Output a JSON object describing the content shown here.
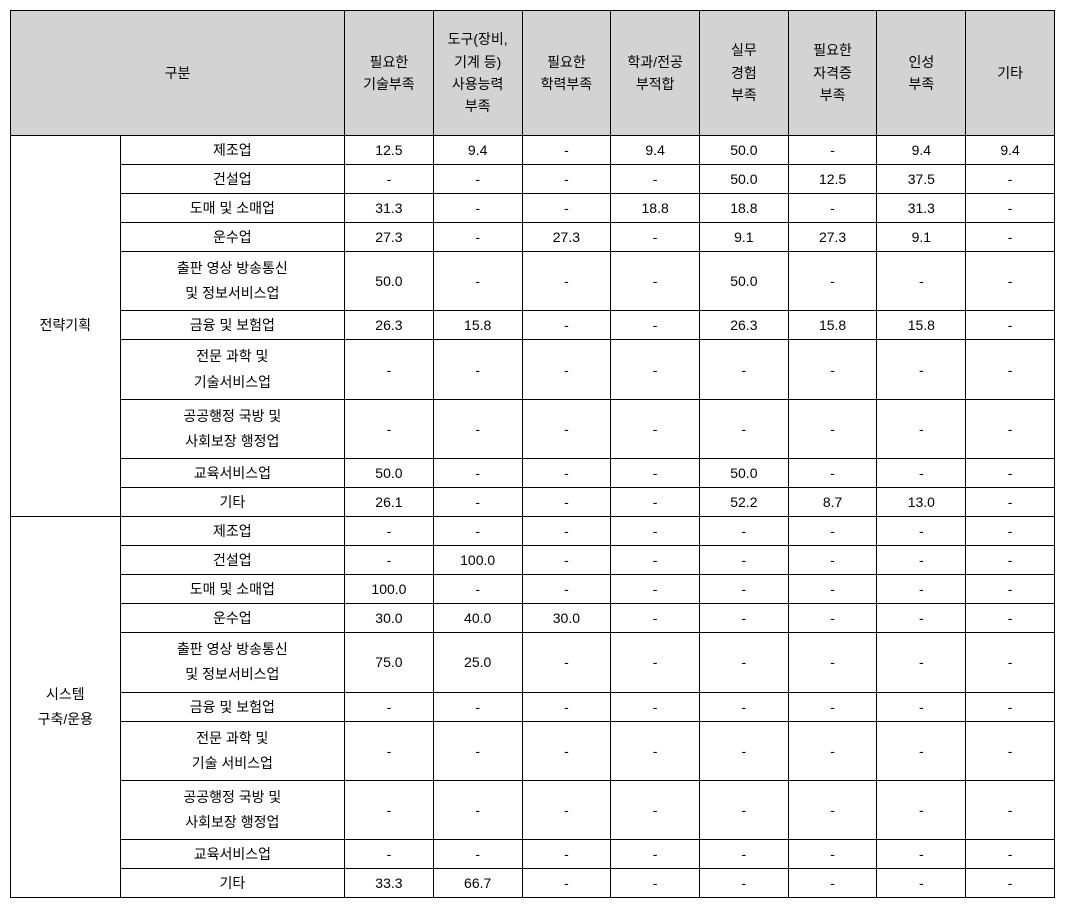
{
  "headers": {
    "division": "구분",
    "col1": "필요한\n기술부족",
    "col2": "도구(장비,\n기계 등)\n사용능력\n부족",
    "col3": "필요한\n학력부족",
    "col4": "학과/전공\n부적합",
    "col5": "실무\n경험\n부족",
    "col6": "필요한\n자격증\n부족",
    "col7": "인성\n부족",
    "col8": "기타"
  },
  "categories": {
    "cat1": "전략기획",
    "cat2": "시스템\n구축/운용"
  },
  "industries": {
    "ind1": "제조업",
    "ind2": "건설업",
    "ind3": "도매 및 소매업",
    "ind4": "운수업",
    "ind5": "출판 영상 방송통신\n및 정보서비스업",
    "ind6": "금융 및 보험업",
    "ind7": "전문 과학 및\n기술서비스업",
    "ind7b": "전문 과학 및\n기술 서비스업",
    "ind8": "공공행정 국방 및\n사회보장 행정업",
    "ind9": "교육서비스업",
    "ind10": "기타"
  },
  "dash": "-",
  "data": {
    "g1": {
      "r1": {
        "c1": "12.5",
        "c2": "9.4",
        "c3": "-",
        "c4": "9.4",
        "c5": "50.0",
        "c6": "-",
        "c7": "9.4",
        "c8": "9.4"
      },
      "r2": {
        "c1": "-",
        "c2": "-",
        "c3": "-",
        "c4": "-",
        "c5": "50.0",
        "c6": "12.5",
        "c7": "37.5",
        "c8": "-"
      },
      "r3": {
        "c1": "31.3",
        "c2": "-",
        "c3": "-",
        "c4": "18.8",
        "c5": "18.8",
        "c6": "-",
        "c7": "31.3",
        "c8": "-"
      },
      "r4": {
        "c1": "27.3",
        "c2": "-",
        "c3": "27.3",
        "c4": "-",
        "c5": "9.1",
        "c6": "27.3",
        "c7": "9.1",
        "c8": "-"
      },
      "r5": {
        "c1": "50.0",
        "c2": "-",
        "c3": "-",
        "c4": "-",
        "c5": "50.0",
        "c6": "-",
        "c7": "-",
        "c8": "-"
      },
      "r6": {
        "c1": "26.3",
        "c2": "15.8",
        "c3": "-",
        "c4": "-",
        "c5": "26.3",
        "c6": "15.8",
        "c7": "15.8",
        "c8": "-"
      },
      "r7": {
        "c1": "-",
        "c2": "-",
        "c3": "-",
        "c4": "-",
        "c5": "-",
        "c6": "-",
        "c7": "-",
        "c8": "-"
      },
      "r8": {
        "c1": "-",
        "c2": "-",
        "c3": "-",
        "c4": "-",
        "c5": "-",
        "c6": "-",
        "c7": "-",
        "c8": "-"
      },
      "r9": {
        "c1": "50.0",
        "c2": "-",
        "c3": "-",
        "c4": "-",
        "c5": "50.0",
        "c6": "-",
        "c7": "-",
        "c8": "-"
      },
      "r10": {
        "c1": "26.1",
        "c2": "-",
        "c3": "-",
        "c4": "-",
        "c5": "52.2",
        "c6": "8.7",
        "c7": "13.0",
        "c8": "-"
      }
    },
    "g2": {
      "r1": {
        "c1": "-",
        "c2": "-",
        "c3": "-",
        "c4": "-",
        "c5": "-",
        "c6": "-",
        "c7": "-",
        "c8": "-"
      },
      "r2": {
        "c1": "-",
        "c2": "100.0",
        "c3": "-",
        "c4": "-",
        "c5": "-",
        "c6": "-",
        "c7": "-",
        "c8": "-"
      },
      "r3": {
        "c1": "100.0",
        "c2": "-",
        "c3": "-",
        "c4": "-",
        "c5": "-",
        "c6": "-",
        "c7": "-",
        "c8": "-"
      },
      "r4": {
        "c1": "30.0",
        "c2": "40.0",
        "c3": "30.0",
        "c4": "-",
        "c5": "-",
        "c6": "-",
        "c7": "-",
        "c8": "-"
      },
      "r5": {
        "c1": "75.0",
        "c2": "25.0",
        "c3": "-",
        "c4": "-",
        "c5": "-",
        "c6": "-",
        "c7": "-",
        "c8": "-"
      },
      "r6": {
        "c1": "-",
        "c2": "-",
        "c3": "-",
        "c4": "-",
        "c5": "-",
        "c6": "-",
        "c7": "-",
        "c8": "-"
      },
      "r7": {
        "c1": "-",
        "c2": "-",
        "c3": "-",
        "c4": "-",
        "c5": "-",
        "c6": "-",
        "c7": "-",
        "c8": "-"
      },
      "r8": {
        "c1": "-",
        "c2": "-",
        "c3": "-",
        "c4": "-",
        "c5": "-",
        "c6": "-",
        "c7": "-",
        "c8": "-"
      },
      "r9": {
        "c1": "-",
        "c2": "-",
        "c3": "-",
        "c4": "-",
        "c5": "-",
        "c6": "-",
        "c7": "-",
        "c8": "-"
      },
      "r10": {
        "c1": "33.3",
        "c2": "66.7",
        "c3": "-",
        "c4": "-",
        "c5": "-",
        "c6": "-",
        "c7": "-",
        "c8": "-"
      }
    }
  }
}
